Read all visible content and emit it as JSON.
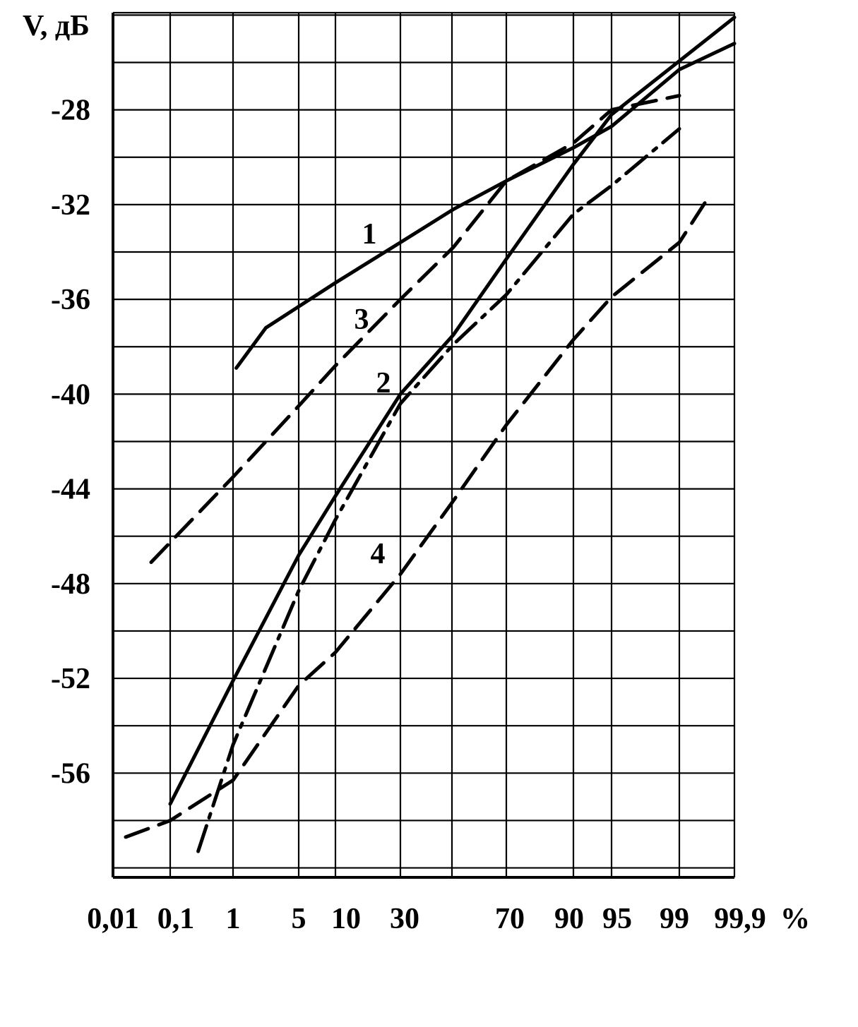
{
  "chart_data": {
    "type": "line",
    "title": "",
    "ylabel": "V, дБ",
    "xlabel": "",
    "x_unit": "%",
    "x_scale": "normal-probability",
    "x_ticks": [
      0.01,
      0.1,
      1,
      5,
      10,
      30,
      70,
      90,
      95,
      99,
      99.9
    ],
    "x_tick_labels": [
      "0,01",
      "0,1",
      "1",
      "5",
      "10",
      "30",
      "70",
      "90",
      "95",
      "99",
      "99,9"
    ],
    "y_ticks": [
      -28,
      -32,
      -36,
      -40,
      -44,
      -48,
      -52,
      -56
    ],
    "y_tick_labels": [
      "-28",
      "-32",
      "-36",
      "-40",
      "-44",
      "-48",
      "-52",
      "-56"
    ],
    "ylim": [
      -60.4,
      -23.9
    ],
    "grid": true,
    "series": [
      {
        "name": "1",
        "style": "solid",
        "points": [
          [
            1.2,
            -38.9
          ],
          [
            3,
            -37.2
          ],
          [
            10,
            -35.3
          ],
          [
            30,
            -33.6
          ],
          [
            50,
            -32.2
          ],
          [
            70,
            -31
          ],
          [
            90,
            -29.6
          ],
          [
            95,
            -28.7
          ],
          [
            99,
            -26.3
          ],
          [
            99.9,
            -25.2
          ]
        ]
      },
      {
        "name": "2",
        "style": "solid",
        "points": [
          [
            0.1,
            -57.3
          ],
          [
            1,
            -52.1
          ],
          [
            5,
            -46.8
          ],
          [
            10,
            -44.3
          ],
          [
            30,
            -40
          ],
          [
            50,
            -37.5
          ],
          [
            70,
            -34.3
          ],
          [
            90,
            -30.3
          ],
          [
            95,
            -28.2
          ],
          [
            99.9,
            -24.1
          ]
        ]
      },
      {
        "name": "3",
        "style": "dashed",
        "points": [
          [
            0.07,
            -47.1
          ],
          [
            1,
            -43.5
          ],
          [
            5,
            -40.5
          ],
          [
            10,
            -38.8
          ],
          [
            30,
            -36
          ],
          [
            50,
            -33.8
          ],
          [
            70,
            -31
          ],
          [
            90,
            -29.4
          ],
          [
            95,
            -28
          ],
          [
            99,
            -27.4
          ]
        ]
      },
      {
        "name": "4",
        "style": "dashed",
        "points": [
          [
            0.03,
            -58.7
          ],
          [
            0.1,
            -58.0
          ],
          [
            1,
            -56.3
          ],
          [
            5,
            -52.3
          ],
          [
            10,
            -50.9
          ],
          [
            30,
            -47.6
          ],
          [
            50,
            -44.5
          ],
          [
            70,
            -41.3
          ],
          [
            90,
            -37.7
          ],
          [
            95,
            -35.9
          ],
          [
            99,
            -33.6
          ],
          [
            99.5,
            -31.6
          ]
        ]
      },
      {
        "name": "",
        "style": "dash-dot",
        "points": [
          [
            0.5,
            -59.3
          ],
          [
            1,
            -54.8
          ],
          [
            5,
            -48.3
          ],
          [
            10,
            -45.3
          ],
          [
            30,
            -40.4
          ],
          [
            50,
            -37.9
          ],
          [
            70,
            -35.8
          ],
          [
            90,
            -32.4
          ],
          [
            95,
            -31.2
          ],
          [
            99,
            -28.8
          ]
        ]
      }
    ],
    "curve_labels": [
      {
        "text": "1",
        "x": 40,
        "y": -33.5
      },
      {
        "text": "3",
        "x": 15,
        "y": -37
      },
      {
        "text": "2",
        "x": 25,
        "y": -39.6
      },
      {
        "text": "4",
        "x": 30,
        "y": -46.6
      }
    ]
  }
}
